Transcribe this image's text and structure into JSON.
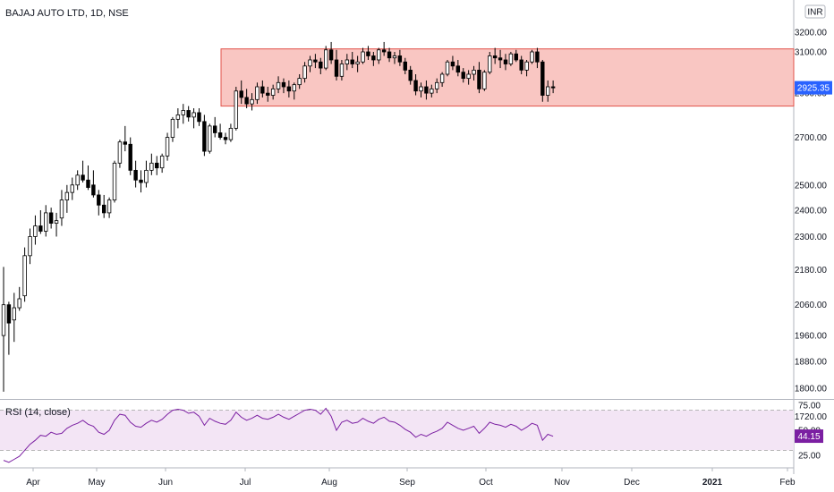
{
  "chart_data": {
    "type": "candlestick",
    "title": "BAJAJ AUTO LTD, 1D, NSE",
    "currency_badge": "INR",
    "price_scale_ticks": [
      "3200.00",
      "3100.00",
      "2900.00",
      "2700.00",
      "2500.00",
      "2400.00",
      "2300.00",
      "2180.00",
      "2060.00",
      "1960.00",
      "1880.00",
      "1800.00",
      "1720.00"
    ],
    "x_tick_labels": [
      "Apr",
      "May",
      "Jun",
      "Jul",
      "Aug",
      "Sep",
      "Oct",
      "Nov",
      "Dec",
      "2021",
      "Feb"
    ],
    "last_price_label": "2925.35",
    "last_price": 2925.35,
    "range_box": {
      "low": 2840,
      "high": 3115
    },
    "colors": {
      "up": "#ffffff",
      "down": "#000000",
      "wick": "#000000",
      "box_fill": "#f9c6c2",
      "box_border": "#e2534b",
      "price_tag": "#2962ff",
      "rsi_line": "#7b1fa2",
      "rsi_tag": "#7b1fa2",
      "rsi_band": "#f3e5f5"
    },
    "candles": [
      [
        1960,
        2190,
        1790,
        2060
      ],
      [
        2060,
        2070,
        1900,
        2000
      ],
      [
        2010,
        2100,
        1940,
        2050
      ],
      [
        2050,
        2120,
        2040,
        2080
      ],
      [
        2090,
        2260,
        2070,
        2230
      ],
      [
        2230,
        2330,
        2200,
        2300
      ],
      [
        2300,
        2380,
        2270,
        2340
      ],
      [
        2340,
        2400,
        2310,
        2320
      ],
      [
        2320,
        2420,
        2300,
        2390
      ],
      [
        2390,
        2410,
        2330,
        2350
      ],
      [
        2350,
        2390,
        2300,
        2360
      ],
      [
        2370,
        2480,
        2340,
        2440
      ],
      [
        2440,
        2500,
        2390,
        2470
      ],
      [
        2470,
        2530,
        2440,
        2500
      ],
      [
        2500,
        2560,
        2480,
        2540
      ],
      [
        2540,
        2600,
        2510,
        2520
      ],
      [
        2520,
        2580,
        2480,
        2490
      ],
      [
        2500,
        2560,
        2450,
        2460
      ],
      [
        2460,
        2480,
        2380,
        2420
      ],
      [
        2420,
        2460,
        2370,
        2390
      ],
      [
        2390,
        2450,
        2370,
        2440
      ],
      [
        2440,
        2600,
        2430,
        2590
      ],
      [
        2590,
        2690,
        2570,
        2680
      ],
      [
        2680,
        2750,
        2640,
        2670
      ],
      [
        2670,
        2700,
        2540,
        2560
      ],
      [
        2560,
        2600,
        2490,
        2520
      ],
      [
        2520,
        2560,
        2470,
        2510
      ],
      [
        2510,
        2600,
        2490,
        2560
      ],
      [
        2560,
        2630,
        2540,
        2590
      ],
      [
        2590,
        2620,
        2540,
        2570
      ],
      [
        2570,
        2630,
        2550,
        2620
      ],
      [
        2620,
        2720,
        2600,
        2700
      ],
      [
        2700,
        2790,
        2680,
        2780
      ],
      [
        2780,
        2830,
        2740,
        2800
      ],
      [
        2800,
        2850,
        2760,
        2820
      ],
      [
        2820,
        2840,
        2770,
        2790
      ],
      [
        2790,
        2830,
        2740,
        2810
      ],
      [
        2810,
        2830,
        2750,
        2770
      ],
      [
        2770,
        2800,
        2620,
        2640
      ],
      [
        2640,
        2760,
        2630,
        2750
      ],
      [
        2750,
        2790,
        2700,
        2720
      ],
      [
        2720,
        2760,
        2690,
        2700
      ],
      [
        2700,
        2720,
        2670,
        2690
      ],
      [
        2690,
        2760,
        2680,
        2740
      ],
      [
        2740,
        2930,
        2730,
        2910
      ],
      [
        2910,
        2960,
        2850,
        2880
      ],
      [
        2880,
        2920,
        2830,
        2850
      ],
      [
        2850,
        2900,
        2820,
        2870
      ],
      [
        2870,
        2950,
        2850,
        2930
      ],
      [
        2930,
        2960,
        2880,
        2900
      ],
      [
        2900,
        2930,
        2860,
        2890
      ],
      [
        2890,
        2940,
        2870,
        2920
      ],
      [
        2920,
        2980,
        2900,
        2950
      ],
      [
        2950,
        2970,
        2900,
        2930
      ],
      [
        2930,
        2960,
        2880,
        2910
      ],
      [
        2910,
        2950,
        2870,
        2940
      ],
      [
        2940,
        2990,
        2920,
        2970
      ],
      [
        2970,
        3050,
        2950,
        3030
      ],
      [
        3030,
        3080,
        3000,
        3060
      ],
      [
        3060,
        3090,
        3020,
        3050
      ],
      [
        3050,
        3070,
        2990,
        3020
      ],
      [
        3020,
        3130,
        3010,
        3110
      ],
      [
        3110,
        3150,
        3040,
        3060
      ],
      [
        3060,
        3110,
        2960,
        2980
      ],
      [
        2980,
        3060,
        2960,
        3040
      ],
      [
        3040,
        3090,
        3010,
        3060
      ],
      [
        3060,
        3100,
        3020,
        3040
      ],
      [
        3040,
        3080,
        3000,
        3050
      ],
      [
        3050,
        3120,
        3040,
        3100
      ],
      [
        3100,
        3130,
        3060,
        3080
      ],
      [
        3080,
        3100,
        3030,
        3060
      ],
      [
        3060,
        3120,
        3040,
        3110
      ],
      [
        3110,
        3150,
        3080,
        3100
      ],
      [
        3100,
        3120,
        3050,
        3070
      ],
      [
        3070,
        3100,
        3040,
        3080
      ],
      [
        3080,
        3110,
        3030,
        3050
      ],
      [
        3050,
        3070,
        2990,
        3010
      ],
      [
        3010,
        3030,
        2940,
        2960
      ],
      [
        2960,
        2990,
        2890,
        2910
      ],
      [
        2910,
        2950,
        2880,
        2930
      ],
      [
        2930,
        2960,
        2870,
        2900
      ],
      [
        2900,
        2940,
        2880,
        2920
      ],
      [
        2920,
        2970,
        2900,
        2950
      ],
      [
        2950,
        3000,
        2930,
        2990
      ],
      [
        2990,
        3060,
        2980,
        3050
      ],
      [
        3050,
        3080,
        3010,
        3030
      ],
      [
        3030,
        3060,
        2980,
        3000
      ],
      [
        3000,
        3020,
        2950,
        2970
      ],
      [
        2970,
        3010,
        2940,
        2990
      ],
      [
        2990,
        3030,
        2960,
        3010
      ],
      [
        3010,
        3050,
        2900,
        2920
      ],
      [
        2920,
        3010,
        2910,
        3000
      ],
      [
        3000,
        3100,
        2990,
        3080
      ],
      [
        3080,
        3120,
        3040,
        3070
      ],
      [
        3070,
        3110,
        3020,
        3060
      ],
      [
        3060,
        3090,
        3010,
        3040
      ],
      [
        3040,
        3100,
        3030,
        3090
      ],
      [
        3090,
        3110,
        3050,
        3060
      ],
      [
        3060,
        3080,
        2990,
        3010
      ],
      [
        3010,
        3060,
        2980,
        3050
      ],
      [
        3050,
        3110,
        3040,
        3100
      ],
      [
        3100,
        3120,
        3020,
        3050
      ],
      [
        3050,
        3060,
        2860,
        2890
      ],
      [
        2890,
        2960,
        2860,
        2930
      ],
      [
        2930,
        2960,
        2900,
        2925
      ]
    ],
    "indicator": {
      "label": "RSI (14, close)",
      "current_value": 44.15,
      "current_value_label": "44.15",
      "upper_band": 70,
      "lower_band": 30,
      "axis_ticks": [
        "75.00",
        "50.00",
        "25.00"
      ],
      "values": [
        20,
        18,
        21,
        24,
        30,
        36,
        40,
        45,
        44,
        48,
        46,
        47,
        52,
        55,
        57,
        60,
        56,
        54,
        48,
        46,
        50,
        60,
        66,
        65,
        58,
        54,
        53,
        57,
        60,
        58,
        61,
        66,
        70,
        71,
        70,
        67,
        68,
        64,
        55,
        62,
        59,
        57,
        56,
        60,
        68,
        63,
        60,
        62,
        65,
        62,
        61,
        63,
        66,
        63,
        61,
        64,
        67,
        70,
        71,
        70,
        66,
        72,
        64,
        50,
        58,
        60,
        57,
        58,
        62,
        59,
        57,
        61,
        63,
        59,
        58,
        55,
        51,
        48,
        43,
        46,
        44,
        47,
        49,
        52,
        58,
        55,
        52,
        50,
        52,
        54,
        47,
        52,
        58,
        56,
        55,
        53,
        56,
        54,
        50,
        53,
        57,
        55,
        40,
        46,
        44
      ]
    }
  }
}
